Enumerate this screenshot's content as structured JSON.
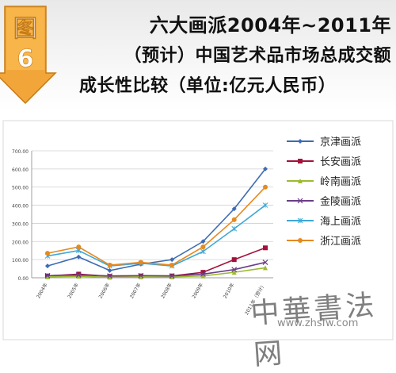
{
  "badge": {
    "top": "图",
    "bottom": "6"
  },
  "title": {
    "line1": "六大画派2004年~2011年",
    "line2": "（预计）中国艺术品市场总成交额",
    "line3": "成长性比较（单位:亿元人民币）"
  },
  "watermark": {
    "brush": "中華書法网",
    "url": "www.zhsfw.com"
  },
  "chart_data": {
    "type": "line",
    "categories": [
      "2004年",
      "2005年",
      "2006年",
      "2007年",
      "2008年",
      "2009年",
      "2010年",
      "2011年（预计）"
    ],
    "yticks": [
      "0.00",
      "100.00",
      "200.00",
      "300.00",
      "400.00",
      "500.00",
      "600.00",
      "700.00"
    ],
    "ylim": [
      0,
      700
    ],
    "grid": true,
    "legend_position": "right",
    "series": [
      {
        "name": "京津画派",
        "color": "#3d6bb3",
        "marker": "diamond",
        "values": [
          65,
          115,
          40,
          75,
          100,
          200,
          380,
          600
        ]
      },
      {
        "name": "长安画派",
        "color": "#a3123c",
        "marker": "square",
        "values": [
          10,
          20,
          8,
          10,
          10,
          30,
          100,
          165
        ]
      },
      {
        "name": "岭南画派",
        "color": "#9bbb2f",
        "marker": "triangle",
        "values": [
          5,
          8,
          3,
          5,
          5,
          10,
          30,
          55
        ]
      },
      {
        "name": "金陵画派",
        "color": "#6b3d8a",
        "marker": "x",
        "values": [
          12,
          15,
          10,
          12,
          10,
          20,
          45,
          85
        ]
      },
      {
        "name": "海上画派",
        "color": "#3fa8d6",
        "marker": "asterisk",
        "values": [
          120,
          150,
          65,
          80,
          65,
          145,
          270,
          400
        ]
      },
      {
        "name": "浙江画派",
        "color": "#e58a1f",
        "marker": "circle",
        "values": [
          135,
          170,
          70,
          85,
          70,
          170,
          320,
          500
        ]
      }
    ]
  }
}
